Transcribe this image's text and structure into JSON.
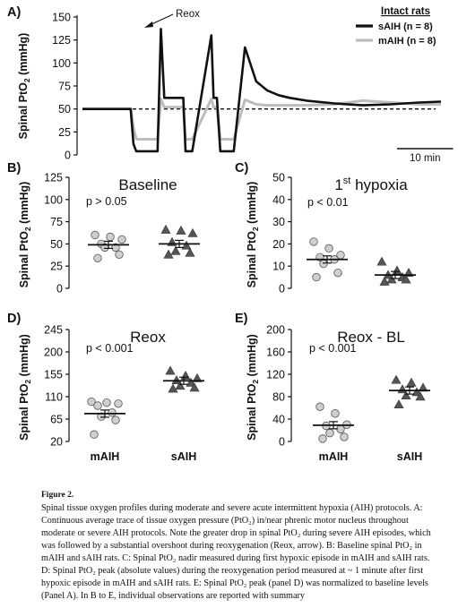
{
  "chart_data": [
    {
      "panel": "A)",
      "type": "line",
      "ylabel": "Spinal PtO₂ (mmHg)",
      "ylim": [
        0,
        150
      ],
      "yticks": [
        0,
        25,
        50,
        75,
        100,
        125,
        150
      ],
      "x_unit": "min",
      "scale_bar_label": "10 min",
      "legend_title": "Intact rats",
      "annotation": "Reox",
      "baseline_value": 50,
      "series": [
        {
          "name": "sAIH (n = 8)",
          "color": "#111111",
          "x": [
            0,
            8.6,
            9.1,
            9.6,
            13.0,
            13.4,
            14.0,
            14.6,
            18.0,
            18.4,
            19.0,
            19.6,
            23.0,
            23.4,
            24.0,
            24.6,
            25.4,
            27,
            29,
            31,
            33,
            35,
            37,
            40,
            45,
            50,
            55,
            60,
            64
          ],
          "y": [
            50,
            50,
            12,
            4,
            4,
            4,
            137,
            62,
            62,
            4,
            4,
            4,
            130,
            62,
            62,
            4,
            4,
            4,
            117,
            80,
            70,
            65,
            62,
            59,
            56,
            54,
            55,
            57,
            58
          ]
        },
        {
          "name": "mAIH (n = 8)",
          "color": "#bdbdbd",
          "x": [
            0,
            8.6,
            9.1,
            9.6,
            13.0,
            13.4,
            14.0,
            14.6,
            18.0,
            18.4,
            19.0,
            19.6,
            23.0,
            23.4,
            24.0,
            24.6,
            25.4,
            27,
            29,
            31,
            33,
            35,
            37,
            40,
            45,
            50,
            55,
            60,
            64
          ],
          "y": [
            50,
            50,
            30,
            17,
            17,
            17,
            61,
            52,
            52,
            17,
            17,
            17,
            61,
            52,
            52,
            17,
            17,
            17,
            60,
            55,
            54,
            54,
            54,
            54,
            55,
            59,
            57,
            55,
            55
          ]
        }
      ]
    },
    {
      "panel": "B)",
      "type": "scatter",
      "title": "Baseline",
      "ylabel": "Spinal PtO₂ (mmHg)",
      "ylim": [
        0,
        125
      ],
      "yticks": [
        0,
        25,
        50,
        75,
        100,
        125
      ],
      "stat": "p > 0.05",
      "categories": [
        "mAIH",
        "sAIH"
      ],
      "series": [
        {
          "name": "mAIH",
          "values": [
            60,
            58,
            55,
            50,
            46,
            46,
            38,
            34
          ],
          "mean": 49
        },
        {
          "name": "sAIH",
          "values": [
            66,
            65,
            62,
            52,
            48,
            42,
            40,
            38
          ],
          "mean": 50
        }
      ]
    },
    {
      "panel": "C)",
      "type": "scatter",
      "title": "1st hypoxia",
      "ylabel": "Spinal PtO₂ (mmHg)",
      "ylim": [
        0,
        50
      ],
      "yticks": [
        0,
        10,
        20,
        30,
        40,
        50
      ],
      "stat": "p < 0.01",
      "categories": [
        "mAIH",
        "sAIH"
      ],
      "series": [
        {
          "name": "mAIH",
          "values": [
            21,
            18,
            15,
            14,
            13,
            11,
            7,
            5
          ],
          "mean": 13
        },
        {
          "name": "sAIH",
          "values": [
            12,
            8,
            7,
            6,
            5,
            4,
            4,
            3
          ],
          "mean": 6
        }
      ]
    },
    {
      "panel": "D)",
      "type": "scatter",
      "title": "Reox",
      "ylabel": "Spinal PtO₂ (mmHg)",
      "ylim": [
        20,
        245
      ],
      "yticks": [
        20,
        65,
        110,
        155,
        200,
        245
      ],
      "stat": "p < 0.001",
      "categories": [
        "mAIH",
        "sAIH"
      ],
      "series": [
        {
          "name": "mAIH",
          "values": [
            100,
            98,
            96,
            92,
            78,
            70,
            63,
            34
          ],
          "mean": 76
        },
        {
          "name": "sAIH",
          "values": [
            162,
            152,
            147,
            143,
            138,
            132,
            128,
            126
          ],
          "mean": 142
        }
      ]
    },
    {
      "panel": "E)",
      "type": "scatter",
      "title": "Reox - BL",
      "ylabel": "Spinal PtO₂ (mmHg)",
      "ylim": [
        0,
        200
      ],
      "yticks": [
        0,
        40,
        80,
        120,
        160,
        200
      ],
      "stat": "p < 0.001",
      "categories": [
        "mAIH",
        "sAIH"
      ],
      "series": [
        {
          "name": "mAIH",
          "values": [
            62,
            50,
            30,
            28,
            22,
            15,
            8,
            5
          ],
          "mean": 29
        },
        {
          "name": "sAIH",
          "values": [
            110,
            105,
            96,
            93,
            88,
            82,
            80,
            66
          ],
          "mean": 91
        }
      ]
    }
  ],
  "caption": {
    "title": "Figure 2.",
    "text": "Spinal tissue oxygen profiles during moderate and severe acute intermittent hypoxia (AIH) protocols. A: Continuous average trace of tissue oxygen pressure (PtO₂) in/near phrenic motor nucleus throughout moderate or severe AIH protocols. Note the greater drop in spinal PtO₂ during severe AIH episodes, which was followed by a substantial overshoot during reoxygenation (Reox, arrow). B: Baseline spinal PtO₂ in mAIH and sAIH rats. C: Spinal PtO₂ nadir measured during first hypoxic episode in mAIH and sAIH rats. D: Spinal PtO₂ peak (absolute values) during the reoxygenation period measured at ~ 1 minute after first hypoxic episode in mAIH and sAIH rats. E: Spinal PtO₂ peak (panel D) was normalized to baseline levels (Panel A). In B to E, individual observations are reported with summary"
  }
}
